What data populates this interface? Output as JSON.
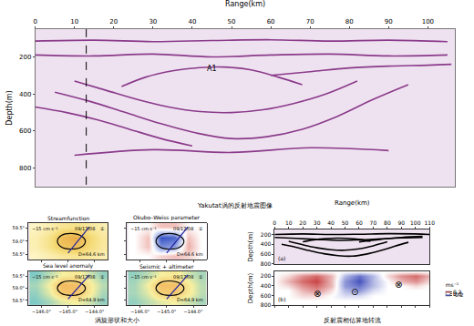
{
  "chart_data": [
    {
      "type": "lines",
      "xlabel": "Range(km)",
      "ylabel": "Depth(m)",
      "xlim": [
        0,
        107
      ],
      "ylim": [
        900,
        50
      ],
      "xticks": [
        0,
        10,
        20,
        30,
        40,
        50,
        60,
        70,
        80,
        90,
        100
      ],
      "yticks": [
        200,
        400,
        600,
        800
      ],
      "grid": false,
      "color": "#8a3a8a",
      "annotations": [
        {
          "text": "A1",
          "x": 45,
          "y": 265
        }
      ],
      "series": [
        {
          "x": [
            0,
            15,
            30,
            45,
            60,
            75,
            90,
            105
          ],
          "y": [
            115,
            110,
            118,
            112,
            108,
            115,
            110,
            118
          ]
        },
        {
          "x": [
            0,
            15,
            30,
            45,
            60,
            75,
            90,
            105
          ],
          "y": [
            190,
            195,
            185,
            200,
            190,
            185,
            195,
            190
          ]
        },
        {
          "x": [
            22,
            28,
            35,
            42,
            48,
            55,
            62,
            68
          ],
          "y": [
            360,
            310,
            275,
            258,
            255,
            270,
            310,
            350
          ]
        },
        {
          "x": [
            10,
            18,
            26,
            34,
            42,
            50,
            58,
            66,
            74,
            82
          ],
          "y": [
            330,
            380,
            430,
            470,
            495,
            500,
            485,
            450,
            400,
            330
          ]
        },
        {
          "x": [
            5,
            14,
            23,
            32,
            41,
            50,
            59,
            68,
            77,
            86,
            95
          ],
          "y": [
            390,
            440,
            500,
            560,
            610,
            640,
            630,
            590,
            520,
            430,
            350
          ]
        },
        {
          "x": [
            0,
            8,
            16,
            24,
            32,
            40
          ],
          "y": [
            470,
            500,
            540,
            590,
            640,
            680
          ]
        },
        {
          "x": [
            60,
            70,
            80,
            90,
            100,
            106
          ],
          "y": [
            300,
            280,
            260,
            250,
            245,
            240
          ]
        },
        {
          "x": [
            10,
            30,
            50,
            70,
            90
          ],
          "y": [
            730,
            700,
            715,
            690,
            705
          ]
        },
        {
          "x": [
            13,
            13
          ],
          "y": [
            50,
            900
          ],
          "color": "#000000",
          "line_style": "dashed"
        }
      ]
    },
    {
      "type": "map",
      "title": "Streamfunction",
      "date": "09/17/08",
      "scale_label": "~15 cm s⁻¹",
      "panel_label": "①",
      "diameter_label": "D=64.6 km",
      "xlim": [
        -146.5,
        -143.5
      ],
      "ylim": [
        58.3,
        59.7
      ],
      "xticks": [
        {
          "value": -146,
          "label": "−146.0°"
        },
        {
          "value": -145,
          "label": "−145.0°"
        },
        {
          "value": -144,
          "label": "−144.0°"
        }
      ],
      "yticks": [
        {
          "value": 58.5,
          "label": "58.5°"
        },
        {
          "value": 59,
          "label": "59.0°"
        },
        {
          "value": 59.5,
          "label": "59.5°"
        }
      ],
      "tick_labels": "y",
      "colors": [
        "#fffbd8",
        "#f5dc78",
        "#e8a33c"
      ],
      "zlim": [
        0,
        1
      ],
      "x": [
        -146.2,
        -145.7,
        -145.2,
        -144.7,
        -144.2,
        -143.7
      ],
      "y": [
        58.45,
        58.8,
        59.15,
        59.55
      ],
      "z": [
        [
          0.1,
          0.2,
          0.3,
          0.35,
          0.3,
          0.2
        ],
        [
          0.2,
          0.4,
          0.7,
          0.75,
          0.5,
          0.3
        ],
        [
          0.2,
          0.4,
          0.8,
          0.9,
          0.55,
          0.3
        ],
        [
          0.1,
          0.2,
          0.35,
          0.4,
          0.3,
          0.2
        ]
      ],
      "series": [
        {
          "x": [
            -145.4,
            -145.25,
            -144.9,
            -144.5,
            -144.35,
            -144.5,
            -144.9,
            -145.25,
            -145.4
          ],
          "y": [
            59.0,
            59.22,
            59.3,
            59.2,
            59.0,
            58.78,
            58.7,
            58.78,
            59.0
          ],
          "color": "#000000"
        },
        {
          "x": [
            -145.0,
            -144.2
          ],
          "y": [
            58.55,
            59.55
          ],
          "color": "#2020a0"
        }
      ]
    },
    {
      "type": "map",
      "title": "Okubo–Weiss parameter",
      "date": "09/17/08",
      "scale_label": "~15 cm s⁻¹",
      "panel_label": "①",
      "diameter_label": "D=64.6 km",
      "xlim": [
        -146.5,
        -143.5
      ],
      "ylim": [
        58.3,
        59.7
      ],
      "xticks": [
        {
          "value": -146,
          "label": "−146.0°"
        },
        {
          "value": -145,
          "label": "−145.0°"
        },
        {
          "value": -144,
          "label": "−144.0°"
        }
      ],
      "yticks": [
        {
          "value": 58.5,
          "label": "58.5°"
        },
        {
          "value": 59,
          "label": "59.0°"
        },
        {
          "value": 59.5,
          "label": "59.5°"
        }
      ],
      "tick_labels": false,
      "colors": [
        "#2040c0",
        "#ffffff",
        "#d03020"
      ],
      "zlim": [
        -1,
        1
      ],
      "x": [
        -146.2,
        -145.7,
        -145.2,
        -144.7,
        -144.2,
        -143.7
      ],
      "y": [
        58.45,
        58.8,
        59.15,
        59.55
      ],
      "z": [
        [
          0,
          0,
          0.2,
          0.3,
          0.2,
          0
        ],
        [
          0,
          0.3,
          -0.6,
          -0.5,
          0.4,
          0
        ],
        [
          0,
          0.3,
          -0.9,
          -0.8,
          0.3,
          0
        ],
        [
          0,
          0,
          0.3,
          0.3,
          0,
          0
        ]
      ],
      "series": [
        {
          "x": [
            -145.4,
            -145.25,
            -144.9,
            -144.5,
            -144.35,
            -144.5,
            -144.9,
            -145.25,
            -145.4
          ],
          "y": [
            59.0,
            59.22,
            59.3,
            59.2,
            59.0,
            58.78,
            58.7,
            58.78,
            59.0
          ],
          "color": "#000000"
        },
        {
          "x": [
            -145.0,
            -144.2
          ],
          "y": [
            58.55,
            59.55
          ],
          "color": "#2020a0"
        }
      ]
    },
    {
      "type": "map",
      "title": "Sea level anomaly",
      "date": "09/17/08",
      "scale_label": "~15 cm s⁻¹",
      "panel_label": "①",
      "diameter_label": "D=64.9 km",
      "xlim": [
        -146.5,
        -143.5
      ],
      "ylim": [
        58.3,
        59.7
      ],
      "xticks": [
        {
          "value": -146,
          "label": "−146.0°"
        },
        {
          "value": -145,
          "label": "−145.0°"
        },
        {
          "value": -144,
          "label": "−144.0°"
        }
      ],
      "yticks": [
        {
          "value": 58.5,
          "label": "58.5°"
        },
        {
          "value": 59,
          "label": "59.0°"
        },
        {
          "value": 59.5,
          "label": "59.5°"
        }
      ],
      "colors": [
        "#30b0e0",
        "#f8f0a0",
        "#f0a040"
      ],
      "zlim": [
        -1,
        1
      ],
      "x": [
        -146.2,
        -145.7,
        -145.2,
        -144.7,
        -144.2,
        -143.7
      ],
      "y": [
        58.45,
        58.8,
        59.15,
        59.55
      ],
      "z": [
        [
          -0.6,
          -0.4,
          -0.1,
          0,
          -0.2,
          -0.5
        ],
        [
          -0.5,
          -0.1,
          0.5,
          0.6,
          0.1,
          -0.4
        ],
        [
          -0.4,
          0,
          0.7,
          0.6,
          0.1,
          -0.3
        ],
        [
          -0.6,
          -0.3,
          0,
          0.1,
          -0.2,
          -0.5
        ]
      ],
      "series": [
        {
          "x": [
            -145.4,
            -145.25,
            -144.9,
            -144.5,
            -144.35,
            -144.5,
            -144.9,
            -145.25,
            -145.4
          ],
          "y": [
            59.0,
            59.22,
            59.3,
            59.2,
            59.0,
            58.78,
            58.7,
            58.78,
            59.0
          ],
          "color": "#000000"
        },
        {
          "x": [
            -145.0,
            -144.2
          ],
          "y": [
            58.55,
            59.55
          ],
          "color": "#2020a0"
        }
      ]
    },
    {
      "type": "map",
      "title": "Seismic + altimeter",
      "date": "09/17/08",
      "scale_label": "~15 cm s⁻¹",
      "panel_label": "①",
      "diameter_label": "D=64.9 km",
      "xlim": [
        -146.5,
        -143.5
      ],
      "ylim": [
        58.3,
        59.7
      ],
      "xticks": [
        {
          "value": -146,
          "label": "−146.0°"
        },
        {
          "value": -145,
          "label": "−145.0°"
        },
        {
          "value": -144,
          "label": "−144.0°"
        }
      ],
      "yticks": [
        {
          "value": 58.5,
          "label": "58.5°"
        },
        {
          "value": 59,
          "label": "59.0°"
        },
        {
          "value": 59.5,
          "label": "59.5°"
        }
      ],
      "tick_labels": "x",
      "colors": [
        "#30b0e0",
        "#f8f0a0",
        "#f0a040"
      ],
      "zlim": [
        -1,
        1
      ],
      "x": [
        -146.2,
        -145.7,
        -145.2,
        -144.7,
        -144.2,
        -143.7
      ],
      "y": [
        58.45,
        58.8,
        59.15,
        59.55
      ],
      "z": [
        [
          -0.5,
          -0.3,
          -0.1,
          0,
          -0.2,
          -0.4
        ],
        [
          -0.4,
          -0.1,
          0.4,
          0.5,
          0.1,
          -0.3
        ],
        [
          -0.4,
          0,
          0.6,
          0.6,
          0.1,
          -0.3
        ],
        [
          -0.5,
          -0.3,
          0,
          0.1,
          -0.2,
          -0.4
        ]
      ],
      "series": [
        {
          "x": [
            -145.4,
            -145.25,
            -144.9,
            -144.5,
            -144.35,
            -144.5,
            -144.9,
            -145.25,
            -145.4
          ],
          "y": [
            59.0,
            59.22,
            59.3,
            59.2,
            59.0,
            58.78,
            58.7,
            58.78,
            59.0
          ],
          "color": "#000000"
        },
        {
          "x": [
            -145.0,
            -144.2
          ],
          "y": [
            58.55,
            59.55
          ],
          "color": "#2020a0"
        }
      ]
    },
    {
      "type": "lines",
      "panel_label": "(a)",
      "xlabel": "Range(km)",
      "ylabel": "Depth(m)",
      "xlim": [
        0,
        110
      ],
      "ylim": [
        800,
        100
      ],
      "xticks": [
        0,
        10,
        20,
        30,
        40,
        50,
        60,
        70,
        80,
        90,
        100,
        110
      ],
      "yticks": [
        200,
        400,
        600,
        800
      ],
      "grid": false,
      "color": "#000000",
      "series": [
        {
          "x": [
            0,
            20,
            40,
            60,
            80,
            100,
            110
          ],
          "y": [
            200,
            190,
            200,
            195,
            185,
            190,
            200
          ]
        },
        {
          "x": [
            0,
            15,
            30,
            45,
            60,
            75,
            90,
            105
          ],
          "y": [
            260,
            280,
            300,
            320,
            310,
            290,
            270,
            260
          ]
        },
        {
          "x": [
            20,
            28,
            36,
            44,
            52,
            60,
            68
          ],
          "y": [
            350,
            310,
            285,
            275,
            280,
            300,
            340
          ]
        },
        {
          "x": [
            10,
            20,
            30,
            40,
            50,
            60,
            70,
            80
          ],
          "y": [
            340,
            410,
            470,
            510,
            520,
            490,
            430,
            350
          ]
        },
        {
          "x": [
            5,
            15,
            25,
            35,
            45,
            55,
            65,
            75,
            85,
            95
          ],
          "y": [
            400,
            460,
            530,
            590,
            630,
            640,
            600,
            530,
            440,
            360
          ]
        },
        {
          "x": [
            60,
            75,
            90,
            105
          ],
          "y": [
            350,
            300,
            260,
            240
          ]
        }
      ]
    },
    {
      "type": "heatmap",
      "panel_label": "(b)",
      "ylabel": "Depth(m)",
      "xlim": [
        0,
        110
      ],
      "ylim": [
        800,
        100
      ],
      "xticks": [
        0,
        10,
        20,
        30,
        40,
        50,
        60,
        70,
        80,
        90,
        100,
        110
      ],
      "yticks": [
        200,
        400,
        600,
        800
      ],
      "tick_labels": "y",
      "grid": false,
      "colors": [
        "#2030b0",
        "#ffffff",
        "#c02020"
      ],
      "zlim": [
        -0.3,
        0.3
      ],
      "colorbar_ticks": [
        {
          "value": -0.2,
          "label": "-0.2"
        },
        {
          "value": 0,
          "label": "0.0"
        },
        {
          "value": 0.2,
          "label": "0.2"
        }
      ],
      "colorbar_title": "ms⁻¹",
      "x": [
        0,
        10,
        20,
        30,
        40,
        50,
        60,
        70,
        80,
        90,
        100,
        110
      ],
      "y": [
        100,
        200,
        300,
        400,
        500,
        600,
        700,
        800
      ],
      "z": [
        [
          0,
          0,
          0,
          0,
          0,
          0,
          0,
          0,
          0,
          0,
          0,
          0
        ],
        [
          0,
          0.05,
          0.15,
          0.2,
          0.1,
          -0.1,
          -0.2,
          -0.1,
          0.05,
          0.15,
          0.2,
          0.1
        ],
        [
          0,
          0.1,
          0.2,
          0.25,
          0.1,
          -0.15,
          -0.25,
          -0.1,
          0,
          0.1,
          0.15,
          0.05
        ],
        [
          0,
          0.05,
          0.15,
          0.2,
          0.1,
          -0.15,
          -0.2,
          -0.1,
          0,
          0,
          0.05,
          0
        ],
        [
          0,
          0,
          0.1,
          0.15,
          0.05,
          -0.1,
          -0.15,
          -0.05,
          0,
          0,
          0,
          0
        ],
        [
          0,
          0,
          0.05,
          0.05,
          0,
          -0.05,
          -0.05,
          0,
          0,
          0,
          0,
          0
        ],
        [
          0,
          0,
          0,
          0,
          0,
          0,
          0,
          0,
          0,
          0,
          0,
          0
        ],
        [
          0,
          0,
          0,
          0,
          0,
          0,
          0,
          0,
          0,
          0,
          0,
          0
        ]
      ],
      "symbols": [
        {
          "text": "⊗",
          "x": 30,
          "y": 570
        },
        {
          "text": "⊙",
          "x": 57,
          "y": 520
        },
        {
          "text": "⊗",
          "x": 88,
          "y": 370
        }
      ]
    }
  ],
  "captions": [
    "Yakutat涡的反射地震图像",
    "涡旋形状和大小",
    "反射震相估算地转流"
  ]
}
